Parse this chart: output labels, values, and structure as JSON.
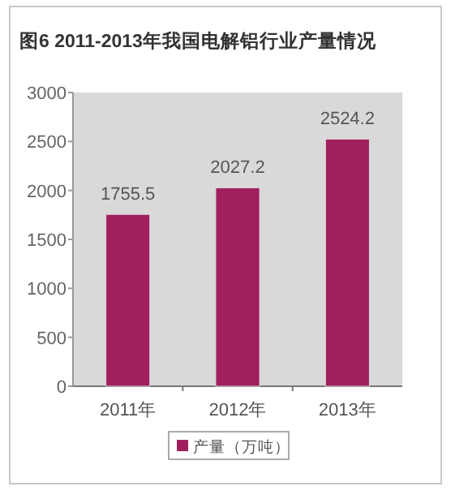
{
  "chart_data": {
    "type": "bar",
    "title": "图6 2011-2013年我国电解铝行业产量情况",
    "categories": [
      "2011年",
      "2012年",
      "2013年"
    ],
    "series": [
      {
        "name": "产量（万吨）",
        "color": "#a0205e",
        "values": [
          1755.5,
          2027.2,
          2524.2
        ]
      }
    ],
    "ylim": [
      0,
      3000
    ],
    "yticks": [
      0,
      500,
      1000,
      1500,
      2000,
      2500,
      3000
    ],
    "data_labels": true,
    "legend": "bottom",
    "grid": false
  }
}
